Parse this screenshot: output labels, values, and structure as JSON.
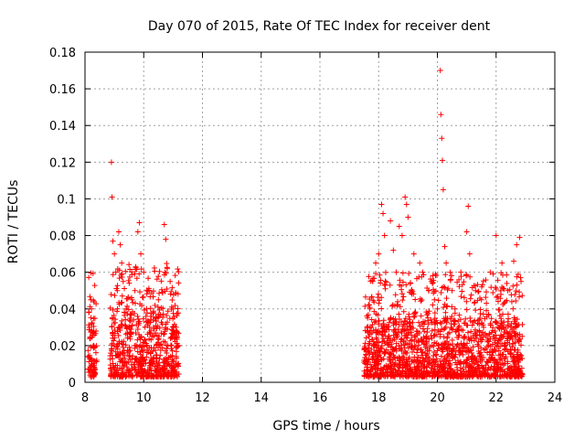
{
  "chart_data": {
    "type": "scatter",
    "title": "Day 070 of 2015, Rate Of TEC Index for receiver dent",
    "xlabel": "GPS time / hours",
    "ylabel": "ROTI / TECUs",
    "xlim": [
      8,
      24
    ],
    "ylim": [
      0,
      0.18
    ],
    "x_ticks": [
      8,
      10,
      12,
      14,
      16,
      18,
      20,
      22,
      24
    ],
    "x_tick_labels": [
      "8",
      "10",
      "12",
      "14",
      "16",
      "18",
      "20",
      "22",
      "24"
    ],
    "y_ticks": [
      0,
      0.02,
      0.04,
      0.06,
      0.08,
      0.1,
      0.12,
      0.14,
      0.16,
      0.18
    ],
    "y_tick_labels": [
      "0",
      "0.02",
      "0.04",
      "0.06",
      "0.08",
      "0.1",
      "0.12",
      "0.14",
      "0.16",
      "0.18"
    ],
    "grid": true,
    "marker": "+",
    "color": "#ff0000",
    "series": [
      {
        "name": "ROTI",
        "points": [
          [
            8.15,
            0.03
          ],
          [
            8.2,
            0.045
          ],
          [
            8.22,
            0.04
          ],
          [
            8.25,
            0.01
          ],
          [
            8.3,
            0.02
          ],
          [
            8.35,
            0.005
          ],
          [
            8.9,
            0.12
          ],
          [
            8.92,
            0.101
          ],
          [
            8.95,
            0.077
          ],
          [
            9.0,
            0.07
          ],
          [
            9.05,
            0.06
          ],
          [
            9.1,
            0.05
          ],
          [
            9.15,
            0.082
          ],
          [
            9.2,
            0.075
          ],
          [
            9.25,
            0.065
          ],
          [
            9.3,
            0.055
          ],
          [
            9.4,
            0.04
          ],
          [
            9.5,
            0.03
          ],
          [
            9.6,
            0.045
          ],
          [
            9.7,
            0.05
          ],
          [
            9.8,
            0.082
          ],
          [
            9.85,
            0.087
          ],
          [
            9.9,
            0.07
          ],
          [
            10.0,
            0.06
          ],
          [
            10.1,
            0.04
          ],
          [
            10.2,
            0.03
          ],
          [
            10.3,
            0.025
          ],
          [
            10.4,
            0.035
          ],
          [
            10.5,
            0.045
          ],
          [
            10.7,
            0.086
          ],
          [
            10.75,
            0.078
          ],
          [
            10.8,
            0.062
          ],
          [
            10.9,
            0.055
          ],
          [
            11.0,
            0.04
          ],
          [
            11.1,
            0.03
          ],
          [
            11.2,
            0.02
          ],
          [
            17.6,
            0.03
          ],
          [
            17.7,
            0.04
          ],
          [
            17.8,
            0.055
          ],
          [
            17.9,
            0.065
          ],
          [
            18.0,
            0.07
          ],
          [
            18.1,
            0.097
          ],
          [
            18.15,
            0.092
          ],
          [
            18.2,
            0.08
          ],
          [
            18.4,
            0.088
          ],
          [
            18.5,
            0.072
          ],
          [
            18.6,
            0.06
          ],
          [
            18.7,
            0.085
          ],
          [
            18.8,
            0.08
          ],
          [
            18.9,
            0.101
          ],
          [
            18.95,
            0.097
          ],
          [
            19.0,
            0.09
          ],
          [
            19.2,
            0.07
          ],
          [
            19.4,
            0.065
          ],
          [
            19.5,
            0.06
          ],
          [
            19.7,
            0.05
          ],
          [
            19.8,
            0.055
          ],
          [
            19.9,
            0.045
          ],
          [
            20.0,
            0.04
          ],
          [
            20.1,
            0.17
          ],
          [
            20.12,
            0.146
          ],
          [
            20.15,
            0.133
          ],
          [
            20.17,
            0.121
          ],
          [
            20.2,
            0.105
          ],
          [
            20.25,
            0.074
          ],
          [
            20.3,
            0.065
          ],
          [
            20.5,
            0.05
          ],
          [
            20.6,
            0.04
          ],
          [
            20.8,
            0.06
          ],
          [
            21.0,
            0.082
          ],
          [
            21.05,
            0.096
          ],
          [
            21.1,
            0.07
          ],
          [
            21.3,
            0.05
          ],
          [
            21.5,
            0.045
          ],
          [
            21.8,
            0.06
          ],
          [
            22.0,
            0.08
          ],
          [
            22.2,
            0.065
          ],
          [
            22.4,
            0.05
          ],
          [
            22.6,
            0.066
          ],
          [
            22.7,
            0.075
          ],
          [
            22.8,
            0.079
          ],
          [
            22.85,
            0.055
          ]
        ],
        "dense_bands": [
          {
            "x_range": [
              8.1,
              8.4
            ],
            "y_range": [
              0.003,
              0.035
            ]
          },
          {
            "x_range": [
              8.85,
              11.2
            ],
            "y_range": [
              0.003,
              0.04
            ]
          },
          {
            "x_range": [
              17.5,
              22.9
            ],
            "y_range": [
              0.003,
              0.035
            ]
          }
        ]
      }
    ]
  }
}
